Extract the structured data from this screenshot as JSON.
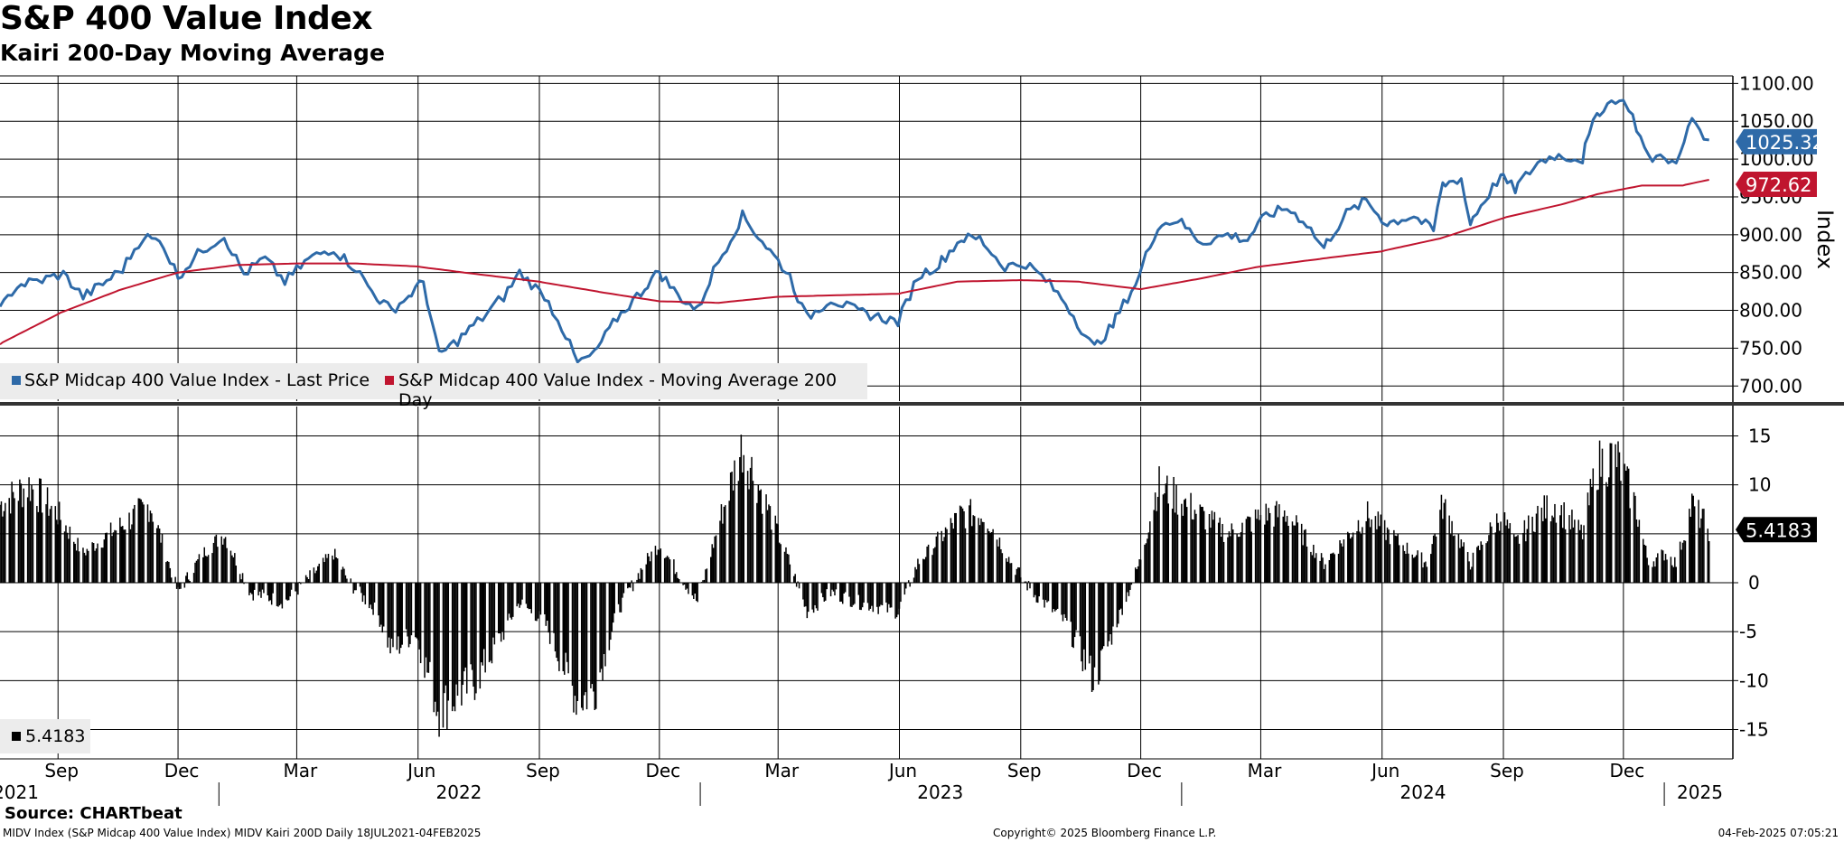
{
  "header": {
    "title": "S&P 400 Value Index",
    "subtitle": "Kairi 200-Day Moving Average"
  },
  "footer": {
    "source": "Source: CHARTbeat",
    "meta": "MIDV Index (S&P Midcap 400 Value Index) MIDV Kairi 200D  Daily 18JUL2021-04FEB2025",
    "copyright": "Copyright© 2025 Bloomberg Finance L.P.",
    "timestamp": "04-Feb-2025 07:05:21"
  },
  "colors": {
    "price": "#2e6aa8",
    "ma": "#c0152f",
    "kairi": "#000000",
    "grid": "#000000"
  },
  "chart_data": [
    {
      "type": "line",
      "title": "S&P 400 Value Index",
      "ylabel": "Index",
      "ylim": [
        680,
        1110
      ],
      "yticks": [
        "1100.00",
        "1050.00",
        "1000.00",
        "950.00",
        "900.00",
        "850.00",
        "800.00",
        "750.00",
        "700.00"
      ],
      "x_months": [
        "Sep",
        "Dec",
        "Mar",
        "Jun",
        "Sep",
        "Dec",
        "Mar",
        "Jun",
        "Sep",
        "Dec",
        "Mar",
        "Jun",
        "Sep",
        "Dec"
      ],
      "x_years": [
        "2021",
        "2022",
        "2023",
        "2024",
        "2025"
      ],
      "legend": [
        "S&P Midcap 400 Value Index - Last Price",
        "S&P Midcap 400 Value Index - Moving Average 200 Day"
      ],
      "series": [
        {
          "name": "S&P Midcap 400 Value Index - Last Price",
          "last_label": "1025.32",
          "points": [
            [
              "2021-07-19",
              800
            ],
            [
              "2021-08-01",
              833
            ],
            [
              "2021-08-20",
              840
            ],
            [
              "2021-09-05",
              848
            ],
            [
              "2021-09-20",
              818
            ],
            [
              "2021-10-05",
              835
            ],
            [
              "2021-10-20",
              855
            ],
            [
              "2021-11-05",
              898
            ],
            [
              "2021-11-20",
              888
            ],
            [
              "2021-12-01",
              845
            ],
            [
              "2021-12-20",
              880
            ],
            [
              "2022-01-05",
              898
            ],
            [
              "2022-01-20",
              848
            ],
            [
              "2022-02-05",
              868
            ],
            [
              "2022-02-20",
              838
            ],
            [
              "2022-03-10",
              868
            ],
            [
              "2022-03-29",
              882
            ],
            [
              "2022-04-15",
              855
            ],
            [
              "2022-05-01",
              818
            ],
            [
              "2022-05-12",
              800
            ],
            [
              "2022-05-25",
              818
            ],
            [
              "2022-06-05",
              838
            ],
            [
              "2022-06-17",
              740
            ],
            [
              "2022-07-01",
              760
            ],
            [
              "2022-07-20",
              790
            ],
            [
              "2022-08-05",
              818
            ],
            [
              "2022-08-17",
              850
            ],
            [
              "2022-09-05",
              820
            ],
            [
              "2022-09-15",
              790
            ],
            [
              "2022-09-30",
              730
            ],
            [
              "2022-10-13",
              742
            ],
            [
              "2022-10-30",
              790
            ],
            [
              "2022-11-20",
              830
            ],
            [
              "2022-12-01",
              852
            ],
            [
              "2022-12-15",
              820
            ],
            [
              "2022-12-30",
              800
            ],
            [
              "2023-01-15",
              865
            ],
            [
              "2023-02-02",
              925
            ],
            [
              "2023-02-20",
              885
            ],
            [
              "2023-03-10",
              845
            ],
            [
              "2023-03-23",
              790
            ],
            [
              "2023-04-10",
              815
            ],
            [
              "2023-05-01",
              798
            ],
            [
              "2023-05-31",
              785
            ],
            [
              "2023-06-15",
              845
            ],
            [
              "2023-07-01",
              860
            ],
            [
              "2023-07-18",
              895
            ],
            [
              "2023-08-01",
              895
            ],
            [
              "2023-08-20",
              858
            ],
            [
              "2023-09-05",
              862
            ],
            [
              "2023-09-20",
              840
            ],
            [
              "2023-10-05",
              810
            ],
            [
              "2023-10-27",
              750
            ],
            [
              "2023-11-10",
              780
            ],
            [
              "2023-11-30",
              845
            ],
            [
              "2023-12-14",
              912
            ],
            [
              "2023-12-29",
              920
            ],
            [
              "2024-01-17",
              890
            ],
            [
              "2024-02-05",
              900
            ],
            [
              "2024-02-20",
              893
            ],
            [
              "2024-03-05",
              925
            ],
            [
              "2024-03-21",
              935
            ],
            [
              "2024-04-05",
              915
            ],
            [
              "2024-04-18",
              882
            ],
            [
              "2024-05-05",
              928
            ],
            [
              "2024-05-20",
              945
            ],
            [
              "2024-06-05",
              915
            ],
            [
              "2024-06-25",
              925
            ],
            [
              "2024-07-10",
              905
            ],
            [
              "2024-07-17",
              965
            ],
            [
              "2024-07-31",
              975
            ],
            [
              "2024-08-07",
              915
            ],
            [
              "2024-08-30",
              978
            ],
            [
              "2024-09-10",
              960
            ],
            [
              "2024-09-27",
              995
            ],
            [
              "2024-10-10",
              1005
            ],
            [
              "2024-10-31",
              1000
            ],
            [
              "2024-11-11",
              1060
            ],
            [
              "2024-11-25",
              1080
            ],
            [
              "2024-12-05",
              1070
            ],
            [
              "2024-12-20",
              1000
            ],
            [
              "2025-01-02",
              1005
            ],
            [
              "2025-01-10",
              990
            ],
            [
              "2025-01-22",
              1055
            ],
            [
              "2025-02-04",
              1025.32
            ]
          ]
        },
        {
          "name": "S&P Midcap 400 Value Index - Moving Average 200 Day",
          "last_label": "972.62",
          "points": [
            [
              "2021-07-19",
              755
            ],
            [
              "2021-09-01",
              795
            ],
            [
              "2021-10-15",
              825
            ],
            [
              "2021-12-01",
              850
            ],
            [
              "2022-01-15",
              860
            ],
            [
              "2022-03-01",
              862
            ],
            [
              "2022-04-15",
              862
            ],
            [
              "2022-06-01",
              858
            ],
            [
              "2022-07-15",
              848
            ],
            [
              "2022-09-01",
              838
            ],
            [
              "2022-10-15",
              825
            ],
            [
              "2022-12-01",
              812
            ],
            [
              "2023-01-15",
              810
            ],
            [
              "2023-03-01",
              818
            ],
            [
              "2023-04-15",
              820
            ],
            [
              "2023-06-01",
              822
            ],
            [
              "2023-07-15",
              838
            ],
            [
              "2023-09-01",
              840
            ],
            [
              "2023-10-15",
              838
            ],
            [
              "2023-12-01",
              828
            ],
            [
              "2024-01-15",
              842
            ],
            [
              "2024-03-01",
              858
            ],
            [
              "2024-04-15",
              868
            ],
            [
              "2024-06-01",
              878
            ],
            [
              "2024-07-15",
              895
            ],
            [
              "2024-09-01",
              922
            ],
            [
              "2024-10-15",
              940
            ],
            [
              "2024-11-15",
              955
            ],
            [
              "2024-12-15",
              965
            ],
            [
              "2025-01-15",
              965
            ],
            [
              "2025-02-04",
              972.62
            ]
          ]
        }
      ]
    },
    {
      "type": "bar",
      "title": "Kairi 200-Day Moving Average",
      "ylim": [
        -18,
        18
      ],
      "yticks": [
        "15",
        "10",
        "5",
        "0",
        "-5",
        "-10",
        "-15"
      ],
      "legend": [
        "5.4183"
      ],
      "last_label": "5.4183",
      "series": [
        {
          "name": "Kairi 200D",
          "envelope": [
            [
              "2021-07-19",
              8
            ],
            [
              "2021-08-10",
              10
            ],
            [
              "2021-09-01",
              7
            ],
            [
              "2021-09-20",
              3
            ],
            [
              "2021-10-10",
              5
            ],
            [
              "2021-11-10",
              8
            ],
            [
              "2021-12-01",
              -1
            ],
            [
              "2021-12-20",
              3
            ],
            [
              "2022-01-05",
              5
            ],
            [
              "2022-01-25",
              -1
            ],
            [
              "2022-02-20",
              -2
            ],
            [
              "2022-03-29",
              3
            ],
            [
              "2022-04-10",
              0
            ],
            [
              "2022-05-01",
              -3
            ],
            [
              "2022-05-12",
              -7
            ],
            [
              "2022-05-30",
              -5
            ],
            [
              "2022-06-17",
              -13
            ],
            [
              "2022-07-15",
              -10
            ],
            [
              "2022-08-05",
              -5
            ],
            [
              "2022-08-17",
              -2
            ],
            [
              "2022-09-05",
              -4
            ],
            [
              "2022-09-30",
              -12
            ],
            [
              "2022-10-13",
              -11
            ],
            [
              "2022-10-30",
              -3
            ],
            [
              "2022-11-20",
              2
            ],
            [
              "2022-12-01",
              4
            ],
            [
              "2022-12-30",
              -2
            ],
            [
              "2023-01-15",
              6
            ],
            [
              "2023-02-02",
              14
            ],
            [
              "2023-02-20",
              8
            ],
            [
              "2023-03-10",
              2
            ],
            [
              "2023-03-23",
              -3
            ],
            [
              "2023-04-10",
              -1
            ],
            [
              "2023-05-01",
              -2
            ],
            [
              "2023-05-31",
              -3
            ],
            [
              "2023-06-15",
              2
            ],
            [
              "2023-07-18",
              7
            ],
            [
              "2023-08-05",
              7
            ],
            [
              "2023-08-25",
              2
            ],
            [
              "2023-09-10",
              -1
            ],
            [
              "2023-10-05",
              -4
            ],
            [
              "2023-10-27",
              -10
            ],
            [
              "2023-11-10",
              -5
            ],
            [
              "2023-11-30",
              2
            ],
            [
              "2023-12-14",
              10
            ],
            [
              "2024-01-05",
              8
            ],
            [
              "2024-02-05",
              5
            ],
            [
              "2024-03-05",
              7
            ],
            [
              "2024-03-21",
              7
            ],
            [
              "2024-04-18",
              2
            ],
            [
              "2024-05-20",
              7
            ],
            [
              "2024-06-15",
              4
            ],
            [
              "2024-07-05",
              2
            ],
            [
              "2024-07-17",
              8
            ],
            [
              "2024-08-07",
              2
            ],
            [
              "2024-08-30",
              7
            ],
            [
              "2024-09-10",
              4
            ],
            [
              "2024-09-27",
              7
            ],
            [
              "2024-10-10",
              8
            ],
            [
              "2024-10-31",
              5
            ],
            [
              "2024-11-11",
              12
            ],
            [
              "2024-11-25",
              13
            ],
            [
              "2024-12-10",
              8
            ],
            [
              "2024-12-20",
              2
            ],
            [
              "2025-01-02",
              3
            ],
            [
              "2025-01-10",
              2
            ],
            [
              "2025-01-22",
              8
            ],
            [
              "2025-02-04",
              5.4183
            ]
          ]
        }
      ]
    }
  ]
}
